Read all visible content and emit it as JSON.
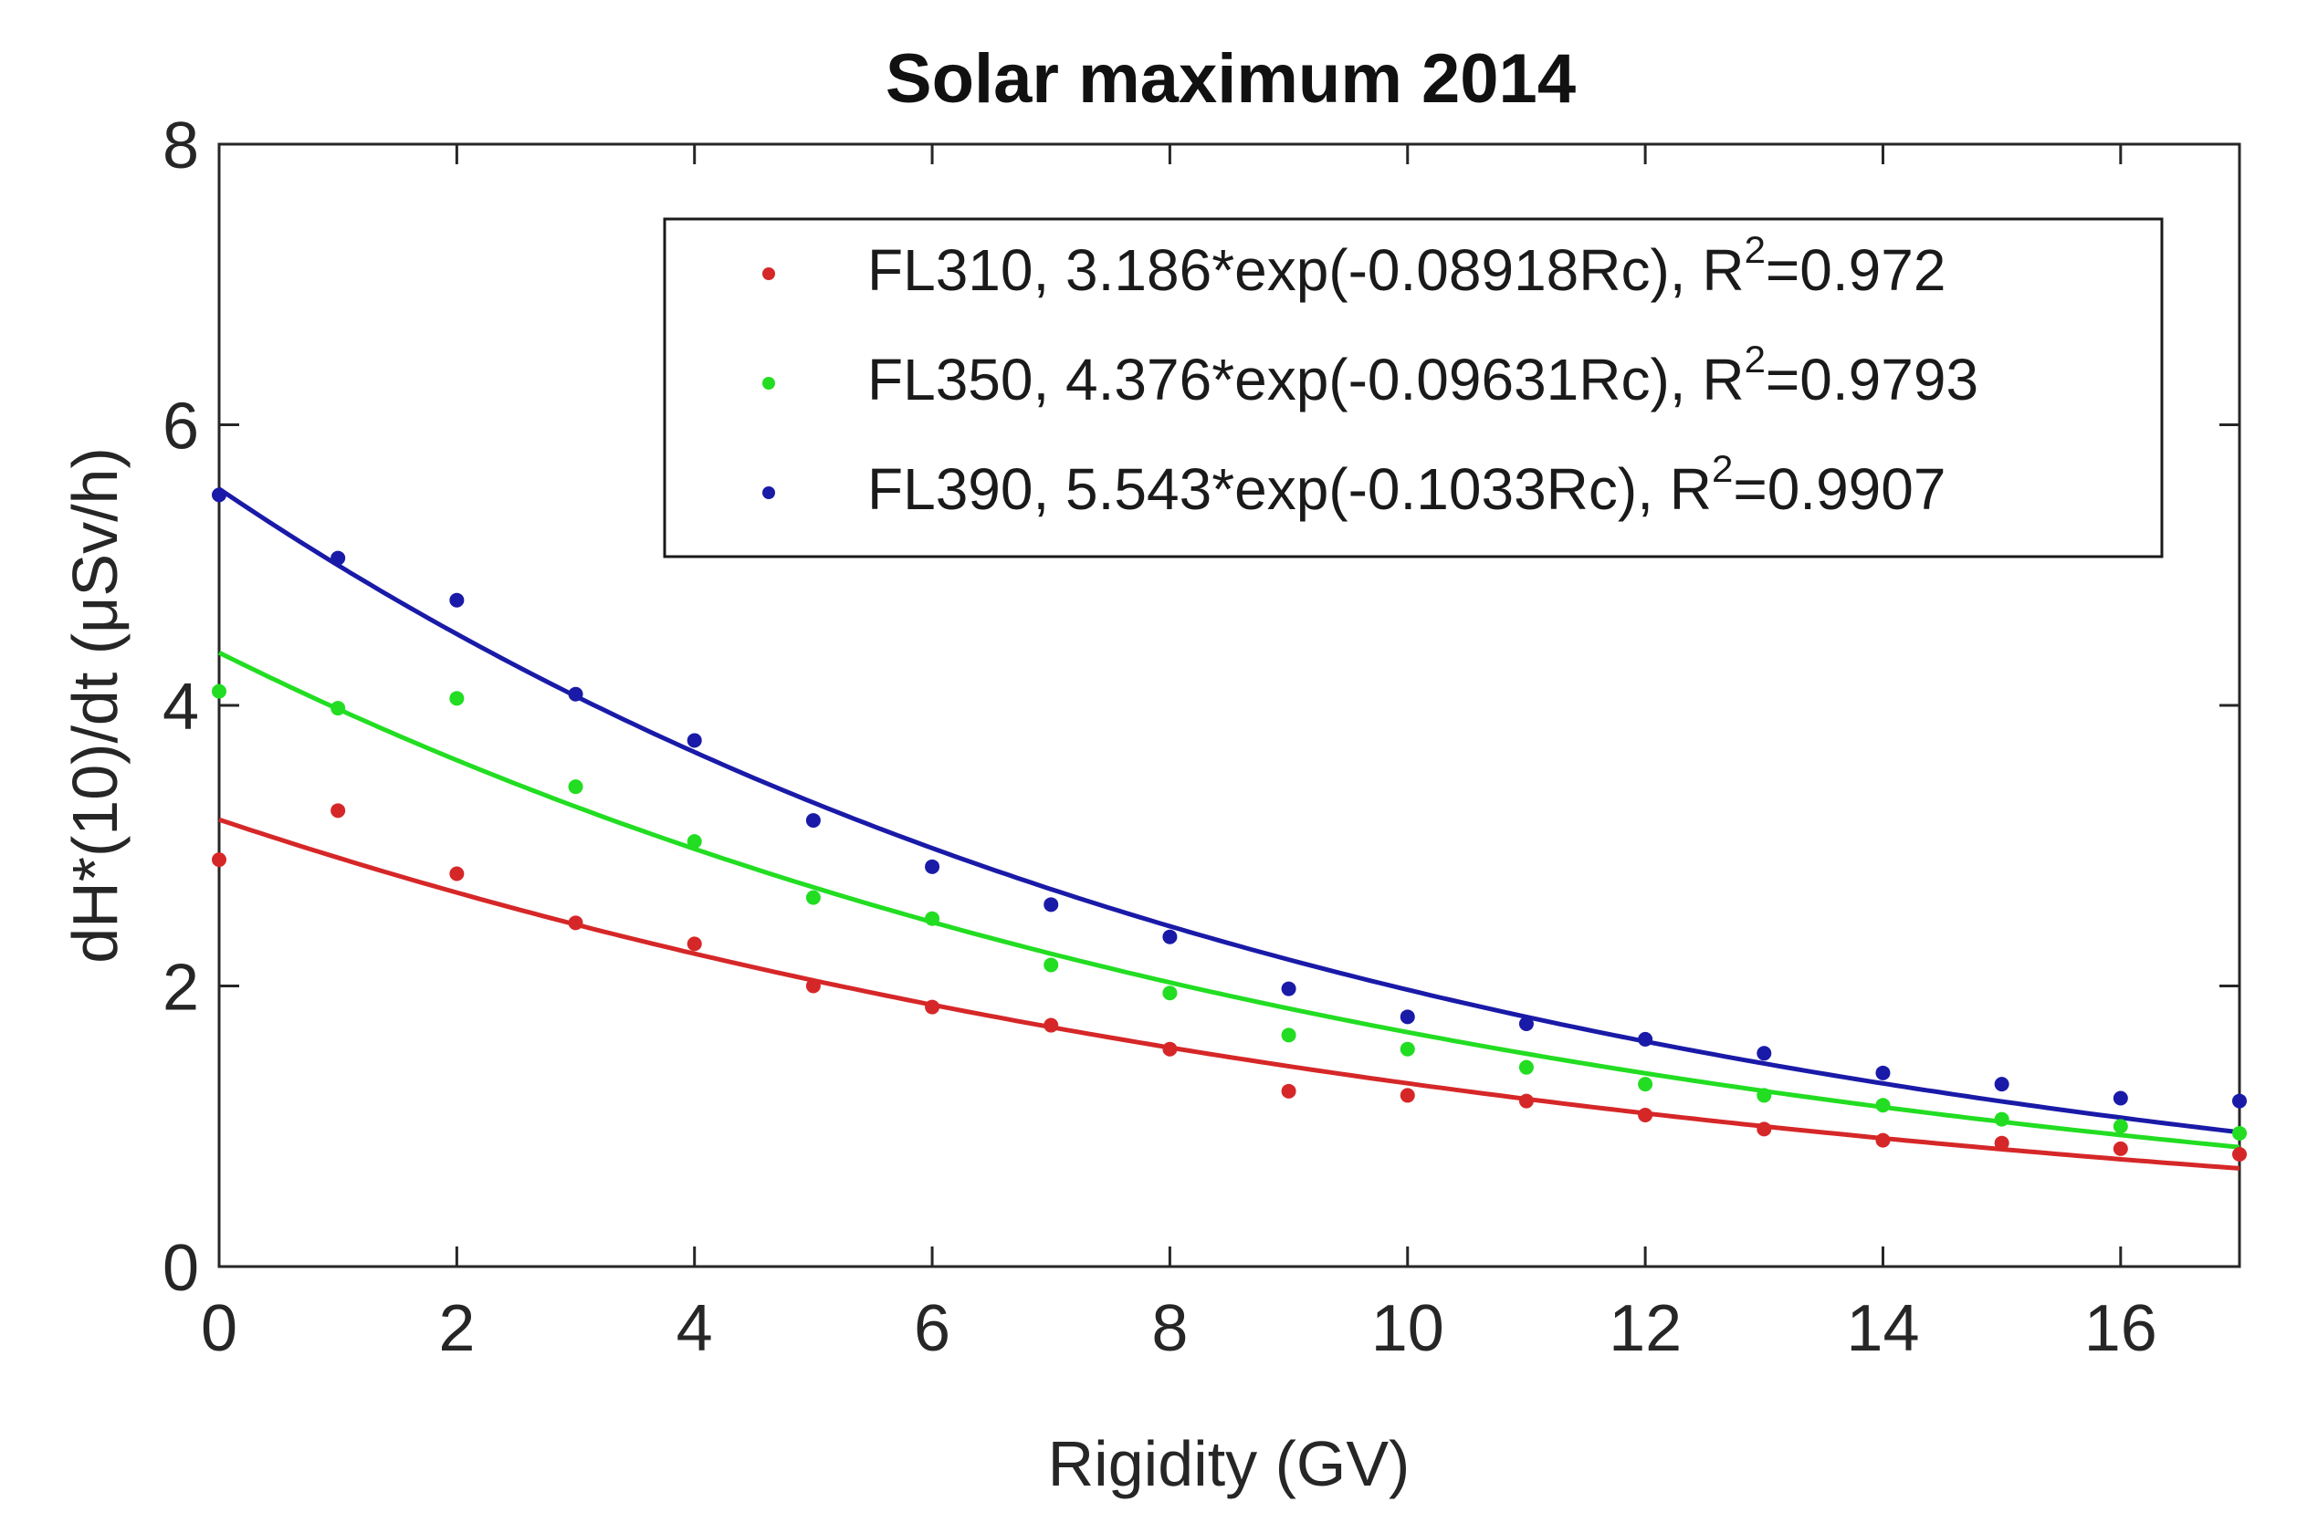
{
  "chart_data": {
    "type": "scatter",
    "title": "Solar maximum 2014",
    "xlabel": "Rigidity (GV)",
    "ylabel": "dH*(10)/dt (μSv/h)",
    "xlim": [
      0,
      17
    ],
    "ylim": [
      0,
      8
    ],
    "xticks": [
      0,
      2,
      4,
      6,
      8,
      10,
      12,
      14,
      16
    ],
    "yticks": [
      0,
      2,
      4,
      6,
      8
    ],
    "legend_position": "top-right",
    "x": [
      0,
      1,
      2,
      3,
      4,
      5,
      6,
      7,
      8,
      9,
      10,
      11,
      12,
      13,
      14,
      15,
      16,
      17
    ],
    "series": [
      {
        "name": "FL310",
        "label_prefix": "FL310, 3.186*exp(-0.08918Rc), R",
        "r2_text": "=0.972",
        "color": "#d62728",
        "fit": {
          "a": 3.186,
          "b": -0.08918
        },
        "values": [
          2.9,
          3.25,
          2.8,
          2.45,
          2.3,
          2.0,
          1.85,
          1.72,
          1.55,
          1.25,
          1.22,
          1.18,
          1.08,
          0.98,
          0.9,
          0.88,
          0.84,
          0.8
        ]
      },
      {
        "name": "FL350",
        "label_prefix": "FL350, 4.376*exp(-0.09631Rc), R",
        "r2_text": "=0.9793",
        "color": "#22dd22",
        "fit": {
          "a": 4.376,
          "b": -0.09631
        },
        "values": [
          4.1,
          3.98,
          4.05,
          3.42,
          3.03,
          2.63,
          2.48,
          2.15,
          1.95,
          1.65,
          1.55,
          1.42,
          1.3,
          1.22,
          1.15,
          1.05,
          1.0,
          0.95
        ]
      },
      {
        "name": "FL390",
        "label_prefix": "FL390, 5.543*exp(-0.1033Rc), R",
        "r2_text": "=0.9907",
        "color": "#1a1aa8",
        "fit": {
          "a": 5.543,
          "b": -0.1033
        },
        "values": [
          5.5,
          5.05,
          4.75,
          4.08,
          3.75,
          3.18,
          2.85,
          2.58,
          2.35,
          1.98,
          1.78,
          1.73,
          1.62,
          1.52,
          1.38,
          1.3,
          1.2,
          1.18
        ]
      }
    ],
    "r2_superscript": "2"
  }
}
